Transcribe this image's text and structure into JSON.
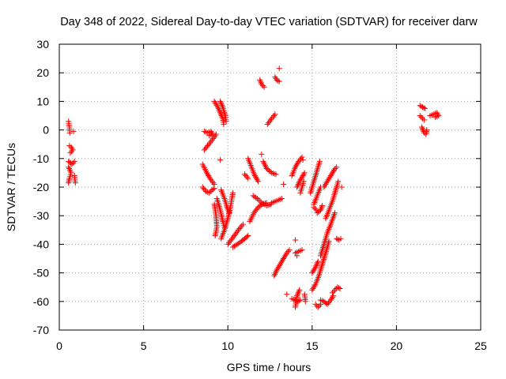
{
  "chart_data": {
    "type": "scatter",
    "title": "Day 348 of 2022, Sidereal Day-to-day VTEC variation (SDTVAR) for receiver darw",
    "xlabel": "GPS time / hours",
    "ylabel": "SDTVAR / TECUs",
    "xlim": [
      0,
      25
    ],
    "ylim": [
      -70,
      30
    ],
    "xticks": [
      0,
      5,
      10,
      15,
      20,
      25
    ],
    "yticks": [
      -70,
      -60,
      -50,
      -40,
      -30,
      -20,
      -10,
      0,
      10,
      20,
      30
    ],
    "xtick_labels": [
      "0",
      "5",
      "10",
      "15",
      "20",
      "25"
    ],
    "ytick_labels": [
      "-70",
      "-60",
      "-50",
      "-40",
      "-30",
      "-20",
      "-10",
      "0",
      "10",
      "20",
      "30"
    ],
    "grid": true,
    "marker": "+",
    "color": "#ff0000",
    "series": [
      {
        "name": "SDTVAR",
        "segments": [
          [
            [
              0.55,
              3
            ],
            [
              0.6,
              1
            ],
            [
              0.62,
              -1
            ]
          ],
          [
            [
              0.85,
              -0.5
            ]
          ],
          [
            [
              0.6,
              -5.5
            ],
            [
              0.7,
              -6
            ],
            [
              0.8,
              -7
            ],
            [
              0.65,
              -8
            ]
          ],
          [
            [
              0.55,
              -11
            ],
            [
              0.75,
              -12
            ],
            [
              0.9,
              -11
            ]
          ],
          [
            [
              0.55,
              -13
            ],
            [
              0.7,
              -15
            ],
            [
              0.6,
              -17
            ],
            [
              0.55,
              -18.5
            ]
          ],
          [
            [
              0.9,
              -16
            ],
            [
              0.95,
              -18.5
            ]
          ],
          [
            [
              8.6,
              -0.5
            ],
            [
              8.8,
              -1
            ],
            [
              9.0,
              -0.5
            ],
            [
              9.1,
              -1.5
            ],
            [
              8.9,
              -2
            ]
          ],
          [
            [
              8.6,
              -7
            ],
            [
              8.8,
              -5.5
            ],
            [
              9.0,
              -4
            ],
            [
              9.2,
              -2.5
            ],
            [
              9.3,
              -1.5
            ]
          ],
          [
            [
              9.55,
              -10.5
            ]
          ],
          [
            [
              8.5,
              -12
            ],
            [
              8.75,
              -15
            ],
            [
              9.0,
              -17.5
            ],
            [
              9.2,
              -19
            ]
          ],
          [
            [
              8.5,
              -20
            ],
            [
              8.7,
              -21.5
            ],
            [
              8.9,
              -22
            ],
            [
              9.05,
              -21
            ],
            [
              9.2,
              -20.5
            ]
          ],
          [
            [
              9.2,
              10
            ],
            [
              9.4,
              8
            ],
            [
              9.55,
              6
            ],
            [
              9.7,
              4
            ],
            [
              9.75,
              2
            ]
          ],
          [
            [
              9.55,
              10
            ],
            [
              9.7,
              8
            ],
            [
              9.85,
              5
            ],
            [
              9.9,
              3
            ]
          ],
          [
            [
              9.2,
              -26
            ],
            [
              9.3,
              -30
            ],
            [
              9.35,
              -34
            ],
            [
              9.25,
              -37
            ]
          ],
          [
            [
              9.35,
              -24
            ],
            [
              9.55,
              -28
            ],
            [
              9.7,
              -32
            ],
            [
              9.8,
              -34
            ]
          ],
          [
            [
              9.6,
              -21
            ],
            [
              9.8,
              -24
            ],
            [
              9.95,
              -27
            ],
            [
              10.1,
              -29
            ]
          ],
          [
            [
              9.6,
              -38
            ],
            [
              9.8,
              -35
            ],
            [
              10.0,
              -31
            ],
            [
              10.15,
              -27
            ],
            [
              10.3,
              -22
            ]
          ],
          [
            [
              10.0,
              -40
            ],
            [
              10.25,
              -38
            ],
            [
              10.5,
              -36
            ],
            [
              10.75,
              -34
            ],
            [
              10.9,
              -33
            ]
          ],
          [
            [
              10.3,
              -41
            ],
            [
              10.55,
              -40
            ],
            [
              10.8,
              -39
            ],
            [
              11.0,
              -38
            ],
            [
              11.2,
              -37
            ]
          ],
          [
            [
              11.3,
              -32
            ],
            [
              11.55,
              -29
            ],
            [
              11.8,
              -27
            ],
            [
              12.05,
              -26
            ],
            [
              12.3,
              -25.5
            ]
          ],
          [
            [
              11.5,
              -23
            ],
            [
              11.75,
              -24
            ],
            [
              12.0,
              -25.5
            ],
            [
              12.3,
              -26.5
            ],
            [
              12.55,
              -26
            ]
          ],
          [
            [
              12.6,
              -25.5
            ],
            [
              12.8,
              -25
            ],
            [
              13.0,
              -24.5
            ],
            [
              13.2,
              -24
            ]
          ],
          [
            [
              11.0,
              -15.5
            ],
            [
              11.2,
              -17
            ]
          ],
          [
            [
              11.2,
              -10
            ],
            [
              11.4,
              -13
            ],
            [
              11.6,
              -16
            ],
            [
              11.8,
              -18
            ]
          ],
          [
            [
              12.0,
              -8.5
            ]
          ],
          [
            [
              12.1,
              -11
            ],
            [
              12.3,
              -13.5
            ],
            [
              12.6,
              -15
            ],
            [
              12.85,
              -15.5
            ]
          ],
          [
            [
              12.35,
              2
            ],
            [
              12.6,
              4
            ],
            [
              12.8,
              5.5
            ]
          ],
          [
            [
              11.9,
              17.5
            ],
            [
              12.0,
              16
            ],
            [
              12.15,
              15
            ]
          ],
          [
            [
              12.8,
              18.5
            ],
            [
              12.9,
              17.5
            ],
            [
              13.05,
              17
            ]
          ],
          [
            [
              13.05,
              21.5
            ]
          ],
          [
            [
              13.3,
              -19
            ]
          ],
          [
            [
              13.8,
              -16
            ],
            [
              14.0,
              -13
            ],
            [
              14.2,
              -11
            ],
            [
              14.4,
              -9.5
            ]
          ],
          [
            [
              14.1,
              -20
            ],
            [
              14.25,
              -18
            ],
            [
              14.45,
              -16
            ],
            [
              14.55,
              -15
            ]
          ],
          [
            [
              14.3,
              -22
            ],
            [
              14.4,
              -20
            ],
            [
              14.5,
              -18
            ]
          ],
          [
            [
              14.45,
              -10.5
            ]
          ],
          [
            [
              12.75,
              -51
            ],
            [
              12.9,
              -49
            ],
            [
              13.1,
              -47
            ],
            [
              13.3,
              -45
            ],
            [
              13.5,
              -43
            ],
            [
              13.65,
              -42
            ]
          ],
          [
            [
              13.5,
              -57.5
            ]
          ],
          [
            [
              13.8,
              -59
            ],
            [
              14.0,
              -59.5
            ],
            [
              14.15,
              -60
            ],
            [
              14.3,
              -59.5
            ]
          ],
          [
            [
              14.0,
              -62
            ],
            [
              14.1,
              -58
            ],
            [
              14.25,
              -56
            ]
          ],
          [
            [
              14.0,
              -38.5
            ]
          ],
          [
            [
              14.0,
              -43
            ],
            [
              14.2,
              -42.5
            ],
            [
              14.4,
              -42
            ]
          ],
          [
            [
              14.1,
              -44
            ]
          ],
          [
            [
              14.55,
              -57.5
            ],
            [
              14.6,
              -60
            ]
          ],
          [
            [
              14.9,
              -22
            ],
            [
              15.1,
              -18
            ],
            [
              15.3,
              -14
            ],
            [
              15.45,
              -11
            ]
          ],
          [
            [
              15.1,
              -26
            ],
            [
              15.3,
              -23
            ],
            [
              15.5,
              -20
            ]
          ],
          [
            [
              15.1,
              -27
            ],
            [
              15.25,
              -28
            ]
          ],
          [
            [
              15.3,
              -29
            ],
            [
              15.5,
              -28
            ],
            [
              15.6,
              -26.5
            ]
          ],
          [
            [
              15.7,
              -20
            ],
            [
              15.9,
              -18
            ],
            [
              16.1,
              -16
            ],
            [
              16.3,
              -14
            ],
            [
              16.45,
              -13
            ]
          ],
          [
            [
              15.8,
              -31
            ],
            [
              16.0,
              -28
            ],
            [
              16.2,
              -25
            ],
            [
              16.4,
              -21
            ],
            [
              16.55,
              -18
            ]
          ],
          [
            [
              16.75,
              -20
            ]
          ],
          [
            [
              15.5,
              -44
            ],
            [
              15.7,
              -40
            ],
            [
              15.9,
              -36
            ],
            [
              16.1,
              -33
            ],
            [
              16.35,
              -29
            ]
          ],
          [
            [
              15.0,
              -50
            ],
            [
              15.2,
              -48
            ],
            [
              15.35,
              -46
            ]
          ],
          [
            [
              15.0,
              -56
            ],
            [
              15.2,
              -54
            ],
            [
              15.4,
              -51
            ],
            [
              15.6,
              -47
            ],
            [
              15.8,
              -43
            ],
            [
              16.0,
              -39
            ]
          ],
          [
            [
              15.5,
              -59.5
            ],
            [
              15.7,
              -60
            ],
            [
              15.9,
              -61
            ],
            [
              16.1,
              -59.5
            ],
            [
              16.25,
              -58
            ]
          ],
          [
            [
              15.2,
              -61
            ],
            [
              15.35,
              -62
            ],
            [
              15.5,
              -61
            ]
          ],
          [
            [
              16.2,
              -57
            ],
            [
              16.35,
              -56
            ],
            [
              16.5,
              -55
            ],
            [
              16.65,
              -55.5
            ]
          ],
          [
            [
              16.45,
              -38
            ],
            [
              16.6,
              -38.5
            ],
            [
              16.7,
              -38
            ]
          ],
          [
            [
              21.4,
              8.5
            ],
            [
              21.55,
              8
            ],
            [
              21.7,
              7.5
            ]
          ],
          [
            [
              21.4,
              5
            ],
            [
              21.55,
              4
            ],
            [
              21.65,
              3.5
            ]
          ],
          [
            [
              21.5,
              1
            ],
            [
              21.65,
              -1
            ],
            [
              21.75,
              -1.5
            ],
            [
              21.8,
              0
            ]
          ],
          [
            [
              22.0,
              5
            ],
            [
              22.2,
              5.5
            ],
            [
              22.4,
              6
            ],
            [
              22.5,
              5
            ],
            [
              22.3,
              4.5
            ]
          ]
        ]
      }
    ]
  }
}
